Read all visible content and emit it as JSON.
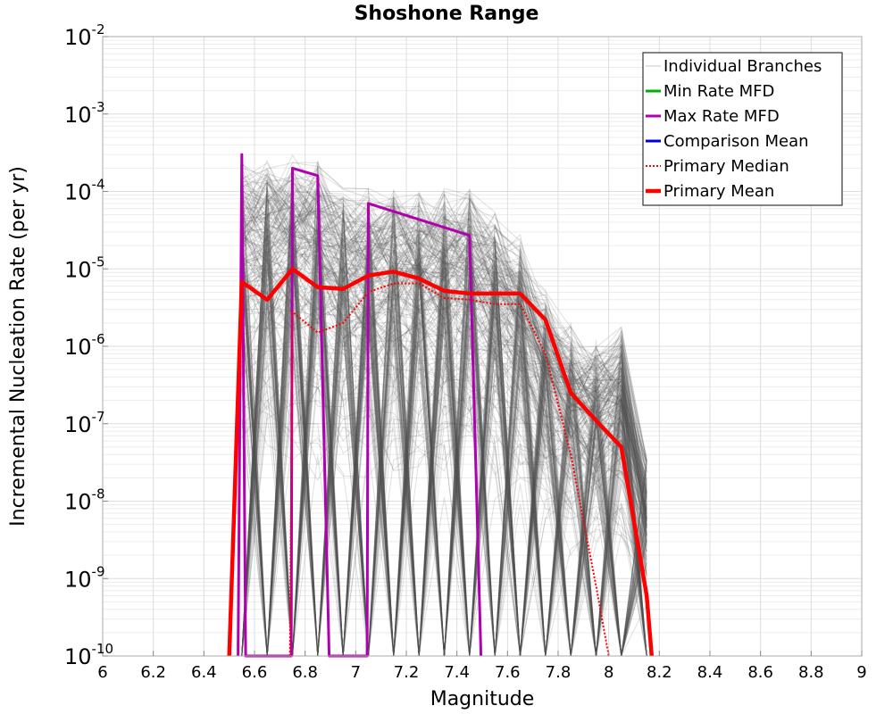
{
  "chart_data": {
    "type": "line",
    "title": "Shoshone Range",
    "xlabel": "Magnitude",
    "ylabel": "Incremental Nucleation Rate (per yr)",
    "x_scale": "linear",
    "y_scale": "log",
    "xlim": [
      6,
      9
    ],
    "ylim": [
      1e-10,
      0.01
    ],
    "x_ticks": [
      "6",
      "6.2",
      "6.4",
      "6.6",
      "6.8",
      "7",
      "7.2",
      "7.4",
      "7.6",
      "7.8",
      "8",
      "8.2",
      "8.4",
      "8.6",
      "8.8",
      "9"
    ],
    "y_ticks": [
      {
        "base": "10",
        "exp": "-10"
      },
      {
        "base": "10",
        "exp": "-9"
      },
      {
        "base": "10",
        "exp": "-8"
      },
      {
        "base": "10",
        "exp": "-7"
      },
      {
        "base": "10",
        "exp": "-6"
      },
      {
        "base": "10",
        "exp": "-5"
      },
      {
        "base": "10",
        "exp": "-4"
      },
      {
        "base": "10",
        "exp": "-3"
      },
      {
        "base": "10",
        "exp": "-2"
      }
    ],
    "grid": true,
    "legend_position": "top-right",
    "series": [
      {
        "name": "Individual Branches",
        "color": "#555555",
        "style": "thin-translucent",
        "x": [
          6.55,
          6.65,
          6.75,
          6.85,
          6.95,
          7.05,
          7.15,
          7.25,
          7.35,
          7.45,
          7.55,
          7.65,
          7.75,
          7.85,
          7.95,
          8.05,
          8.15
        ],
        "y_range_min": [
          1e-10,
          1e-10,
          1e-10,
          1e-10,
          1e-10,
          1e-10,
          1e-10,
          1e-10,
          1e-10,
          1e-10,
          1e-10,
          1e-10,
          1e-10,
          1e-10,
          1e-10,
          1e-10,
          1e-10
        ],
        "y_range_max": [
          0.0003,
          0.0003,
          0.0003,
          0.0003,
          0.00015,
          0.00013,
          0.00013,
          0.00012,
          0.00012,
          0.00012,
          6e-05,
          3e-05,
          6e-06,
          2e-06,
          1.5e-06,
          2.2e-06,
          4.5e-08
        ]
      },
      {
        "name": "Min Rate MFD",
        "color": "#00b000",
        "x": [],
        "y": []
      },
      {
        "name": "Max Rate MFD",
        "color": "#b000b0",
        "x": [
          6.535,
          6.55,
          6.565,
          6.745,
          6.75,
          6.85,
          6.895,
          7.045,
          7.05,
          7.45,
          7.495
        ],
        "y": [
          1e-10,
          0.0003,
          1e-10,
          1e-10,
          0.0002,
          0.00016,
          1e-10,
          1e-10,
          7e-05,
          2.7e-05,
          1e-10
        ]
      },
      {
        "name": "Comparison Mean",
        "color": "#0000e0",
        "x": [],
        "y": []
      },
      {
        "name": "Primary Median",
        "color": "#ff0000",
        "style": "dotted",
        "x": [
          6.74,
          6.75,
          6.85,
          6.95,
          7.05,
          7.15,
          7.25,
          7.35,
          7.45,
          7.55,
          7.65,
          7.75,
          7.85,
          7.95,
          8.0
        ],
        "y": [
          1e-10,
          2.8e-06,
          1.5e-06,
          2e-06,
          5e-06,
          6.5e-06,
          6.5e-06,
          4.2e-06,
          4e-06,
          3.5e-06,
          3.5e-06,
          8e-07,
          4e-08,
          8e-10,
          1e-10
        ]
      },
      {
        "name": "Primary Mean",
        "color": "#ff0000",
        "style": "bold",
        "x": [
          6.5,
          6.55,
          6.65,
          6.75,
          6.85,
          6.95,
          7.05,
          7.15,
          7.25,
          7.35,
          7.45,
          7.55,
          7.65,
          7.75,
          7.85,
          7.95,
          8.05,
          8.15,
          8.17
        ],
        "y": [
          1e-10,
          6.8e-06,
          4e-06,
          1e-05,
          5.8e-06,
          5.5e-06,
          8.2e-06,
          9.2e-06,
          7.5e-06,
          5.2e-06,
          4.8e-06,
          4.8e-06,
          4.8e-06,
          2.2e-06,
          2.5e-07,
          1.1e-07,
          5e-08,
          6e-10,
          1e-10
        ]
      }
    ]
  }
}
